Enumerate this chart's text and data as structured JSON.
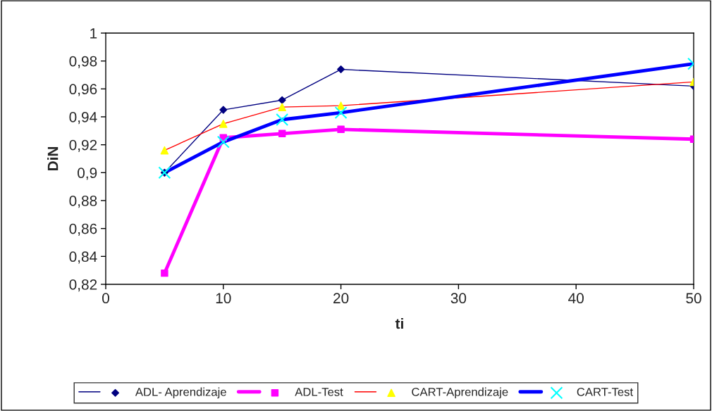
{
  "chart_data": {
    "type": "line",
    "xlabel": "ti",
    "ylabel": "DiN",
    "x": [
      5,
      10,
      15,
      20,
      50
    ],
    "series": [
      {
        "name": "ADL- Aprendizaje",
        "color": "#000080",
        "marker": "diamond",
        "values": [
          0.9,
          0.945,
          0.952,
          0.974,
          0.962
        ]
      },
      {
        "name": "ADL-Test",
        "color": "#ff00ff",
        "marker": "square",
        "values": [
          0.828,
          0.925,
          0.928,
          0.931,
          0.924
        ]
      },
      {
        "name": "CART-Aprendizaje",
        "color": "#ff0000",
        "colors": [
          "#ffff00",
          "#ffff00",
          "#ffff00",
          "#ffff00",
          "#ffff00"
        ],
        "marker": "triangle",
        "values": [
          0.916,
          0.935,
          0.947,
          0.948,
          0.965
        ]
      },
      {
        "name": "CART-Test",
        "color": "#0000ff",
        "colors": [
          "#00ffff",
          "#00ffff",
          "#00ffff",
          "#00ffff",
          "#00ffff"
        ],
        "marker": "cross",
        "values": [
          0.9,
          0.922,
          0.938,
          0.943,
          0.978
        ]
      }
    ],
    "xlim": [
      0,
      50
    ],
    "xticks": [
      0,
      10,
      20,
      30,
      40,
      50
    ],
    "ylim": [
      0.82,
      1
    ],
    "yticks": [
      {
        "value": 0.82,
        "label": "0,82"
      },
      {
        "value": 0.84,
        "label": "0,84"
      },
      {
        "value": 0.86,
        "label": "0,86"
      },
      {
        "value": 0.88,
        "label": "0,88"
      },
      {
        "value": 0.9,
        "label": "0,9"
      },
      {
        "value": 0.92,
        "label": "0,92"
      },
      {
        "value": 0.94,
        "label": "0,94"
      },
      {
        "value": 0.96,
        "label": "0,96"
      },
      {
        "value": 0.98,
        "label": "0,98"
      },
      {
        "value": 1,
        "label": "1"
      }
    ],
    "grid": false,
    "legend": "bottom",
    "line_style": "solid"
  }
}
